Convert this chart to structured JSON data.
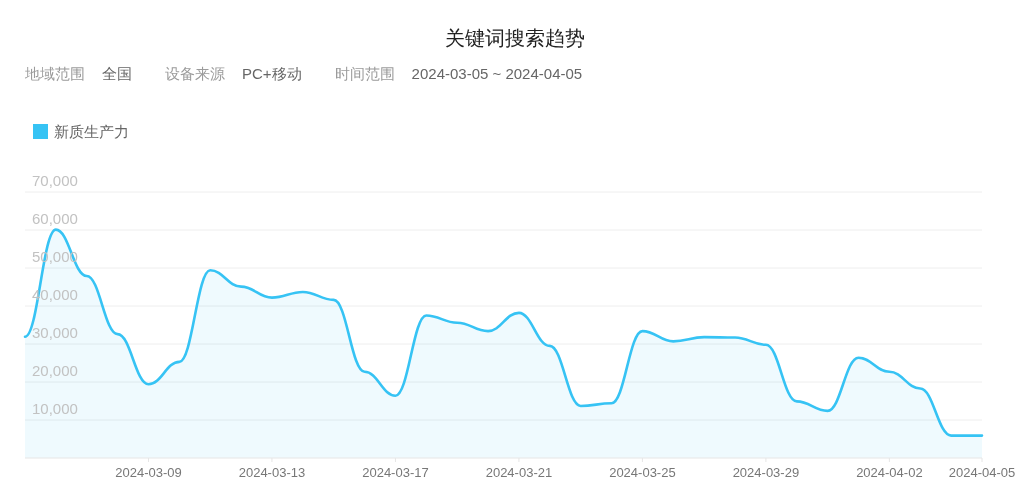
{
  "chart_data": {
    "type": "area",
    "title": "关键词搜索趋势",
    "annotations": [
      "地域范围",
      "全国",
      "设备来源",
      "PC+移动",
      "时间范围",
      "2024-03-05 ~ 2024-04-05"
    ],
    "x": [
      "2024-03-05",
      "2024-03-06",
      "2024-03-07",
      "2024-03-08",
      "2024-03-09",
      "2024-03-10",
      "2024-03-11",
      "2024-03-12",
      "2024-03-13",
      "2024-03-14",
      "2024-03-15",
      "2024-03-16",
      "2024-03-17",
      "2024-03-18",
      "2024-03-19",
      "2024-03-20",
      "2024-03-21",
      "2024-03-22",
      "2024-03-23",
      "2024-03-24",
      "2024-03-25",
      "2024-03-26",
      "2024-03-27",
      "2024-03-28",
      "2024-03-29",
      "2024-03-30",
      "2024-03-31",
      "2024-04-01",
      "2024-04-02",
      "2024-04-03",
      "2024-04-04",
      "2024-04-05"
    ],
    "series": [
      {
        "name": "新质生产力",
        "color": "#36c3f4",
        "values": [
          31900,
          60100,
          47900,
          32600,
          19400,
          25300,
          49400,
          45100,
          42200,
          43700,
          41600,
          22700,
          16400,
          37500,
          35600,
          33400,
          38200,
          29500,
          13700,
          14400,
          33400,
          30700,
          31800,
          31700,
          29800,
          14900,
          12400,
          26400,
          22700,
          18300,
          5900,
          5900
        ]
      }
    ],
    "xlim": [
      "2024-03-05",
      "2024-04-05"
    ],
    "xticks": [
      "2024-03-09",
      "2024-03-13",
      "2024-03-17",
      "2024-03-21",
      "2024-03-25",
      "2024-03-29",
      "2024-04-02",
      "2024-04-05"
    ],
    "ylim": [
      0,
      70000
    ],
    "yticks": [
      {
        "value": 10000,
        "label": "10,000"
      },
      {
        "value": 20000,
        "label": "20,000"
      },
      {
        "value": 30000,
        "label": "30,000"
      },
      {
        "value": 40000,
        "label": "40,000"
      },
      {
        "value": 50000,
        "label": "50,000"
      },
      {
        "value": 60000,
        "label": "60,000"
      },
      {
        "value": 70000,
        "label": "70,000"
      }
    ],
    "grid": "y",
    "legend": "top left"
  }
}
